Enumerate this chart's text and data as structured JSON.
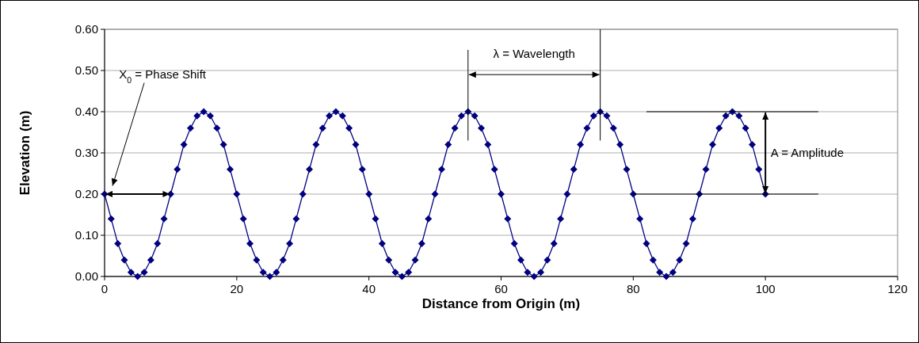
{
  "chart_data": {
    "type": "line",
    "xlabel": "Distance from Origin (m)",
    "ylabel": "Elevation (m)",
    "x": [
      0,
      1,
      2,
      3,
      4,
      5,
      6,
      7,
      8,
      9,
      10,
      11,
      12,
      13,
      14,
      15,
      16,
      17,
      18,
      19,
      20,
      21,
      22,
      23,
      24,
      25,
      26,
      27,
      28,
      29,
      30,
      31,
      32,
      33,
      34,
      35,
      36,
      37,
      38,
      39,
      40,
      41,
      42,
      43,
      44,
      45,
      46,
      47,
      48,
      49,
      50,
      51,
      52,
      53,
      54,
      55,
      56,
      57,
      58,
      59,
      60,
      61,
      62,
      63,
      64,
      65,
      66,
      67,
      68,
      69,
      70,
      71,
      72,
      73,
      74,
      75,
      76,
      77,
      78,
      79,
      80,
      81,
      82,
      83,
      84,
      85,
      86,
      87,
      88,
      89,
      90,
      91,
      92,
      93,
      94,
      95,
      96,
      97,
      98,
      99,
      100
    ],
    "series": [
      {
        "color": "#000080",
        "values": [
          0.2,
          0.14,
          0.08,
          0.04,
          0.01,
          0,
          0.01,
          0.04,
          0.08,
          0.14,
          0.2,
          0.26,
          0.32,
          0.36,
          0.39,
          0.4,
          0.39,
          0.36,
          0.32,
          0.26,
          0.2,
          0.14,
          0.08,
          0.04,
          0.01,
          0,
          0.01,
          0.04,
          0.08,
          0.14,
          0.2,
          0.26,
          0.32,
          0.36,
          0.39,
          0.4,
          0.39,
          0.36,
          0.32,
          0.26,
          0.2,
          0.14,
          0.08,
          0.04,
          0.01,
          0,
          0.01,
          0.04,
          0.08,
          0.14,
          0.2,
          0.26,
          0.32,
          0.36,
          0.39,
          0.4,
          0.39,
          0.36,
          0.32,
          0.26,
          0.2,
          0.14,
          0.08,
          0.04,
          0.01,
          0,
          0.01,
          0.04,
          0.08,
          0.14,
          0.2,
          0.26,
          0.32,
          0.36,
          0.39,
          0.4,
          0.39,
          0.36,
          0.32,
          0.26,
          0.2,
          0.14,
          0.08,
          0.04,
          0.01,
          0,
          0.01,
          0.04,
          0.08,
          0.14,
          0.2,
          0.26,
          0.32,
          0.36,
          0.39,
          0.4,
          0.39,
          0.36,
          0.32,
          0.26,
          0.2
        ]
      }
    ],
    "xlim": [
      0,
      120
    ],
    "xticks": [
      0,
      20,
      40,
      60,
      80,
      100,
      120
    ],
    "ylim": [
      0,
      0.6
    ],
    "yticks": [
      {
        "value": 0,
        "label": "0.00"
      },
      {
        "value": 0.1,
        "label": "0.10"
      },
      {
        "value": 0.2,
        "label": "0.20"
      },
      {
        "value": 0.3,
        "label": "0.30"
      },
      {
        "value": 0.4,
        "label": "0.40"
      },
      {
        "value": 0.5,
        "label": "0.50"
      },
      {
        "value": 0.6,
        "label": "0.60"
      }
    ],
    "grid": "y",
    "marker": "diamond",
    "line_style": "solid",
    "annotations": [
      "X$_{0}$ = Phase Shift",
      "λ = Wavelength",
      "A = Amplitude"
    ]
  }
}
